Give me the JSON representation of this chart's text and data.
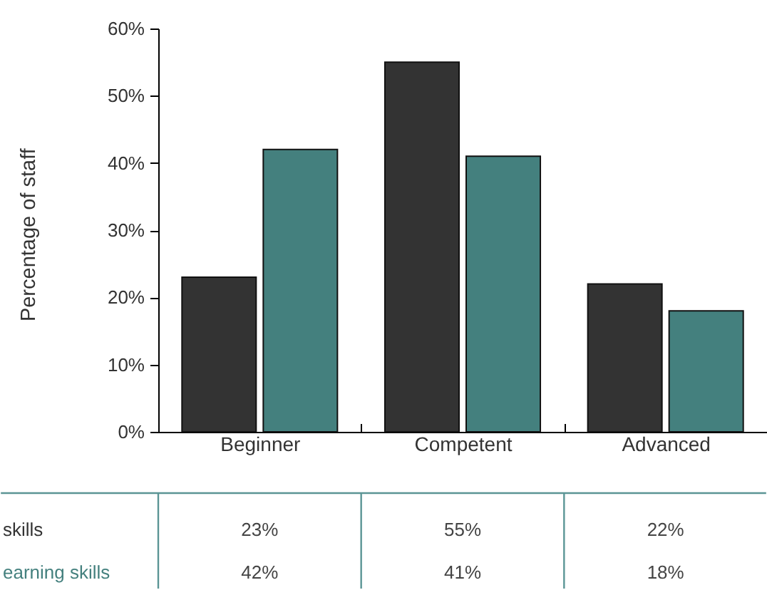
{
  "chart_data": {
    "type": "bar",
    "ylabel": "Percentage of staff",
    "categories": [
      "Beginner",
      "Competent",
      "Advanced"
    ],
    "series": [
      {
        "name": "skills",
        "color": "#333333",
        "values": [
          23,
          55,
          22
        ],
        "value_labels": [
          "23%",
          "55%",
          "22%"
        ]
      },
      {
        "name": "earning skills",
        "color": "#44807e",
        "values": [
          42,
          41,
          18
        ],
        "value_labels": [
          "42%",
          "41%",
          "18%"
        ]
      }
    ],
    "ylim": [
      0,
      60
    ],
    "yticks": [
      {
        "value": 0,
        "label": "0%"
      },
      {
        "value": 10,
        "label": "10%"
      },
      {
        "value": 20,
        "label": "20%"
      },
      {
        "value": 30,
        "label": "30%"
      },
      {
        "value": 40,
        "label": "40%"
      },
      {
        "value": 50,
        "label": "50%"
      },
      {
        "value": 60,
        "label": "60%"
      }
    ]
  }
}
